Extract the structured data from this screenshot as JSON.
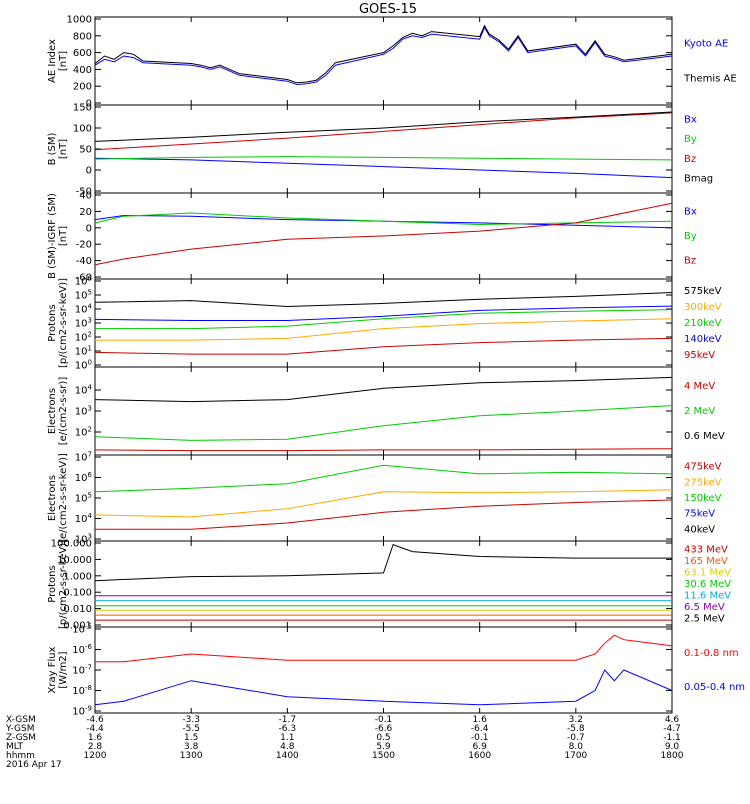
{
  "title": "GOES-15",
  "footer": {
    "row_labels": [
      "X-GSM",
      "Y-GSM",
      "Z-GSM",
      "MLT",
      "hhmm",
      "2016 Apr 17"
    ],
    "columns": [
      {
        "x": "-4.6",
        "y": "-4.4",
        "z": "1.6",
        "mlt": "2.8",
        "hhmm": "1200"
      },
      {
        "x": "-3.3",
        "y": "-5.5",
        "z": "1.5",
        "mlt": "3.8",
        "hhmm": "1300"
      },
      {
        "x": "-1.7",
        "y": "-6.3",
        "z": "1.1",
        "mlt": "4.8",
        "hhmm": "1400"
      },
      {
        "x": "-0.1",
        "y": "-6.6",
        "z": "0.5",
        "mlt": "5.9",
        "hhmm": "1500"
      },
      {
        "x": "1.6",
        "y": "-6.4",
        "z": "-0.1",
        "mlt": "6.9",
        "hhmm": "1600"
      },
      {
        "x": "3.2",
        "y": "-5.8",
        "z": "-0.7",
        "mlt": "8.0",
        "hhmm": "1700"
      },
      {
        "x": "4.6",
        "y": "-4.7",
        "z": "-1.1",
        "mlt": "9.0",
        "hhmm": "1800"
      }
    ]
  },
  "chart_data": [
    {
      "type": "line",
      "ylabel": "AE Index\n[nT]",
      "yscale": "linear",
      "ylim": [
        0,
        1000
      ],
      "yticks": [
        "1000",
        "800",
        "600",
        "400",
        "200",
        "0"
      ],
      "tick_values": [
        1000,
        800,
        600,
        400,
        200,
        0
      ],
      "series": [
        {
          "name": "Kyoto AE",
          "color": "#0000ff",
          "x": [
            1200,
            1210,
            1220,
            1230,
            1240,
            1250,
            1300,
            1310,
            1320,
            1330,
            1340,
            1350,
            1400,
            1410,
            1420,
            1430,
            1440,
            1450,
            1500,
            1510,
            1520,
            1530,
            1540,
            1550,
            1600,
            1605,
            1610,
            1620,
            1630,
            1640,
            1650,
            1700,
            1710,
            1720,
            1730,
            1740,
            1750,
            1800
          ],
          "y": [
            450,
            520,
            490,
            560,
            540,
            480,
            450,
            430,
            400,
            430,
            380,
            330,
            260,
            220,
            230,
            250,
            330,
            450,
            580,
            650,
            760,
            800,
            780,
            820,
            760,
            900,
            800,
            730,
            620,
            780,
            600,
            680,
            560,
            720,
            560,
            530,
            490,
            560
          ]
        },
        {
          "name": "Themis AE",
          "color": "#000000",
          "x": [
            1200,
            1210,
            1220,
            1230,
            1240,
            1250,
            1300,
            1310,
            1320,
            1330,
            1340,
            1350,
            1400,
            1410,
            1420,
            1430,
            1440,
            1450,
            1500,
            1510,
            1520,
            1530,
            1540,
            1550,
            1600,
            1605,
            1610,
            1620,
            1630,
            1640,
            1650,
            1700,
            1710,
            1720,
            1730,
            1740,
            1750,
            1800
          ],
          "y": [
            470,
            560,
            520,
            600,
            580,
            500,
            470,
            450,
            420,
            450,
            400,
            350,
            280,
            240,
            250,
            270,
            360,
            480,
            600,
            680,
            780,
            830,
            800,
            850,
            790,
            920,
            820,
            750,
            640,
            800,
            620,
            700,
            580,
            740,
            580,
            550,
            510,
            580
          ]
        }
      ]
    },
    {
      "type": "line",
      "ylabel": "B (SM)\n[nT]",
      "yscale": "linear",
      "ylim": [
        -50,
        150
      ],
      "yticks": [
        "150",
        "100",
        "50",
        "0",
        "-50"
      ],
      "tick_values": [
        150,
        100,
        50,
        0,
        -50
      ],
      "series": [
        {
          "name": "Bx",
          "color": "#0000ff",
          "x": [
            1200,
            1300,
            1400,
            1500,
            1600,
            1700,
            1800
          ],
          "y": [
            28,
            24,
            16,
            8,
            0,
            -8,
            -18
          ]
        },
        {
          "name": "By",
          "color": "#00cc00",
          "x": [
            1200,
            1300,
            1400,
            1500,
            1600,
            1700,
            1800
          ],
          "y": [
            26,
            30,
            32,
            30,
            28,
            26,
            24
          ]
        },
        {
          "name": "Bz",
          "color": "#cc0000",
          "x": [
            1200,
            1300,
            1400,
            1500,
            1600,
            1700,
            1800
          ],
          "y": [
            48,
            62,
            76,
            92,
            108,
            124,
            136
          ]
        },
        {
          "name": "Bmag",
          "color": "#000000",
          "x": [
            1200,
            1300,
            1400,
            1500,
            1600,
            1700,
            1800
          ],
          "y": [
            68,
            78,
            90,
            100,
            115,
            126,
            138
          ]
        }
      ]
    },
    {
      "type": "line",
      "ylabel": "B (SM)-IGRF (SM)\n[nT]",
      "yscale": "linear",
      "ylim": [
        -60,
        40
      ],
      "yticks": [
        "40",
        "20",
        "0",
        "-20",
        "-40",
        "-60"
      ],
      "tick_values": [
        40,
        20,
        0,
        -20,
        -40,
        -60
      ],
      "series": [
        {
          "name": "Bx",
          "color": "#0000ff",
          "x": [
            1200,
            1230,
            1300,
            1400,
            1500,
            1600,
            1700,
            1800
          ],
          "y": [
            10,
            15,
            14,
            10,
            8,
            6,
            3,
            0
          ]
        },
        {
          "name": "By",
          "color": "#00cc00",
          "x": [
            1200,
            1230,
            1300,
            1400,
            1500,
            1600,
            1700,
            1800
          ],
          "y": [
            6,
            14,
            18,
            12,
            8,
            4,
            6,
            8
          ]
        },
        {
          "name": "Bz",
          "color": "#cc0000",
          "x": [
            1200,
            1230,
            1300,
            1400,
            1500,
            1600,
            1700,
            1800
          ],
          "y": [
            -45,
            -38,
            -26,
            -14,
            -10,
            -4,
            6,
            30
          ]
        }
      ]
    },
    {
      "type": "line",
      "ylabel": "Protons\n[p/(cm2-s-sr-keV)]",
      "yscale": "log",
      "ylim": [
        1,
        1000000
      ],
      "yticks": [
        "10^6",
        "10^5",
        "10^4",
        "10^3",
        "10^2",
        "10^1",
        "10^0"
      ],
      "tick_values": [
        1000000,
        100000,
        10000,
        1000,
        100,
        10,
        1
      ],
      "series": [
        {
          "name": "575keV",
          "color": "#000000",
          "x": [
            1200,
            1300,
            1400,
            1500,
            1600,
            1700,
            1800
          ],
          "y": [
            30000,
            40000,
            15000,
            25000,
            50000,
            80000,
            150000
          ]
        },
        {
          "name": "300keV",
          "color": "#ffaa00",
          "x": [
            1200,
            1300,
            1400,
            1500,
            1600,
            1700,
            1800
          ],
          "y": [
            60,
            60,
            80,
            400,
            900,
            1400,
            2000
          ]
        },
        {
          "name": "210keV",
          "color": "#00cc00",
          "x": [
            1200,
            1300,
            1400,
            1500,
            1600,
            1700,
            1800
          ],
          "y": [
            400,
            400,
            600,
            2000,
            5000,
            7000,
            9000
          ]
        },
        {
          "name": "140keV",
          "color": "#0000ff",
          "x": [
            1200,
            1300,
            1400,
            1500,
            1600,
            1700,
            1800
          ],
          "y": [
            1800,
            1500,
            1500,
            3000,
            8000,
            12000,
            16000
          ]
        },
        {
          "name": "95keV",
          "color": "#cc0000",
          "x": [
            1200,
            1300,
            1400,
            1500,
            1600,
            1700,
            1800
          ],
          "y": [
            8,
            6,
            6,
            20,
            40,
            60,
            80
          ]
        }
      ]
    },
    {
      "type": "line",
      "ylabel": "Electrons\n[e/(cm2-s-sr)]",
      "yscale": "log",
      "ylim": [
        10,
        100000
      ],
      "yticks": [
        "10^4",
        "10^3",
        "10^2"
      ],
      "tick_values": [
        10000,
        1000,
        100
      ],
      "series": [
        {
          "name": "4 MeV",
          "color": "#cc0000",
          "x": [
            1200,
            1300,
            1400,
            1500,
            1600,
            1700,
            1800
          ],
          "y": [
            14,
            13,
            13,
            14,
            14,
            15,
            16
          ]
        },
        {
          "name": "2 MeV",
          "color": "#00cc00",
          "x": [
            1200,
            1300,
            1400,
            1500,
            1600,
            1700,
            1800
          ],
          "y": [
            60,
            40,
            45,
            200,
            600,
            1000,
            1800
          ]
        },
        {
          "name": "0.6 MeV",
          "color": "#000000",
          "x": [
            1200,
            1300,
            1400,
            1500,
            1600,
            1700,
            1800
          ],
          "y": [
            3500,
            2800,
            3500,
            12000,
            22000,
            28000,
            40000
          ]
        }
      ]
    },
    {
      "type": "line",
      "ylabel": "Electrons\n[e/(cm2-s-sr-keV)]",
      "yscale": "log",
      "ylim": [
        1000,
        10000000
      ],
      "yticks": [
        "10^7",
        "10^6",
        "10^5",
        "10^4",
        "10^3"
      ],
      "tick_values": [
        10000000,
        1000000,
        100000,
        10000,
        1000
      ],
      "series": [
        {
          "name": "475keV",
          "color": "#cc0000",
          "x": [
            1200,
            1300,
            1400,
            1500,
            1600,
            1700,
            1800
          ],
          "y": [
            3000,
            3000,
            6000,
            20000,
            40000,
            60000,
            80000
          ]
        },
        {
          "name": "275keV",
          "color": "#ffaa00",
          "x": [
            1200,
            1300,
            1400,
            1500,
            1600,
            1700,
            1800
          ],
          "y": [
            15000,
            12000,
            30000,
            200000,
            180000,
            200000,
            250000
          ]
        },
        {
          "name": "150keV",
          "color": "#00cc00",
          "x": [
            1200,
            1300,
            1400,
            1500,
            1600,
            1700,
            1800
          ],
          "y": [
            200000,
            300000,
            500000,
            4000000,
            1500000,
            1800000,
            1500000
          ]
        },
        {
          "name": "75keV",
          "color": "#0000ff",
          "x": [],
          "y": []
        },
        {
          "name": "40keV",
          "color": "#000000",
          "x": [],
          "y": []
        }
      ]
    },
    {
      "type": "line",
      "ylabel": "Protons\n[p/(cm2-s-sr-keV)]",
      "yscale": "log",
      "ylim": [
        0.001,
        100
      ],
      "yticks": [
        "100.000",
        "10.000",
        "1.000",
        "0.100",
        "0.010",
        "0.001"
      ],
      "tick_values": [
        100,
        10,
        1,
        0.1,
        0.01,
        0.001
      ],
      "series": [
        {
          "name": "433 MeV",
          "color": "#cc0000",
          "x": [
            1200,
            1300,
            1400,
            1500,
            1600,
            1700,
            1800
          ],
          "y": [
            0.002,
            0.002,
            0.002,
            0.002,
            0.002,
            0.002,
            0.002
          ]
        },
        {
          "name": "165 MeV",
          "color": "#ff5500",
          "x": [
            1200,
            1300,
            1400,
            1500,
            1600,
            1700,
            1800
          ],
          "y": [
            0.004,
            0.004,
            0.004,
            0.004,
            0.004,
            0.004,
            0.004
          ]
        },
        {
          "name": "63.1 MeV",
          "color": "#ddcc00",
          "x": [
            1200,
            1300,
            1400,
            1500,
            1600,
            1700,
            1800
          ],
          "y": [
            0.008,
            0.008,
            0.008,
            0.008,
            0.008,
            0.008,
            0.008
          ]
        },
        {
          "name": "30.6 MeV",
          "color": "#00cc00",
          "x": [
            1200,
            1300,
            1400,
            1500,
            1600,
            1700,
            1800
          ],
          "y": [
            0.015,
            0.015,
            0.015,
            0.015,
            0.015,
            0.015,
            0.015
          ]
        },
        {
          "name": "11.6 MeV",
          "color": "#00aadd",
          "x": [
            1200,
            1300,
            1400,
            1500,
            1600,
            1700,
            1800
          ],
          "y": [
            0.03,
            0.03,
            0.03,
            0.03,
            0.03,
            0.03,
            0.03
          ]
        },
        {
          "name": "6.5 MeV",
          "color": "#8800aa",
          "x": [
            1200,
            1300,
            1400,
            1500,
            1600,
            1700,
            1800
          ],
          "y": [
            0.06,
            0.06,
            0.06,
            0.06,
            0.06,
            0.06,
            0.06
          ]
        },
        {
          "name": "2.5 MeV",
          "color": "#000000",
          "x": [
            1200,
            1300,
            1400,
            1500,
            1510,
            1530,
            1600,
            1700,
            1800
          ],
          "y": [
            0.5,
            0.9,
            1.0,
            1.5,
            80,
            30,
            15,
            12,
            12
          ]
        }
      ]
    },
    {
      "type": "line",
      "ylabel": "Xray Flux\n[W/m2]",
      "yscale": "log",
      "ylim": [
        1e-09,
        1e-05
      ],
      "yticks": [
        "10^-5",
        "10^-6",
        "10^-7",
        "10^-8",
        "10^-9"
      ],
      "tick_values": [
        1e-05,
        1e-06,
        1e-07,
        1e-08,
        1e-09
      ],
      "series": [
        {
          "name": "0.1-0.8 nm",
          "color": "#ff0000",
          "x": [
            1200,
            1230,
            1300,
            1400,
            1500,
            1600,
            1700,
            1720,
            1730,
            1740,
            1750,
            1800
          ],
          "y": [
            2.5e-07,
            2.5e-07,
            6e-07,
            3e-07,
            3e-07,
            3e-07,
            3e-07,
            6e-07,
            2e-06,
            5e-06,
            3e-06,
            1.5e-06
          ]
        },
        {
          "name": "0.05-0.4 nm",
          "color": "#0000ff",
          "x": [
            1200,
            1230,
            1300,
            1400,
            1500,
            1600,
            1700,
            1720,
            1730,
            1740,
            1750,
            1800
          ],
          "y": [
            2e-09,
            3e-09,
            3e-08,
            5e-09,
            3e-09,
            2e-09,
            3e-09,
            1e-08,
            1e-07,
            3e-08,
            1e-07,
            1e-08
          ]
        }
      ]
    }
  ]
}
